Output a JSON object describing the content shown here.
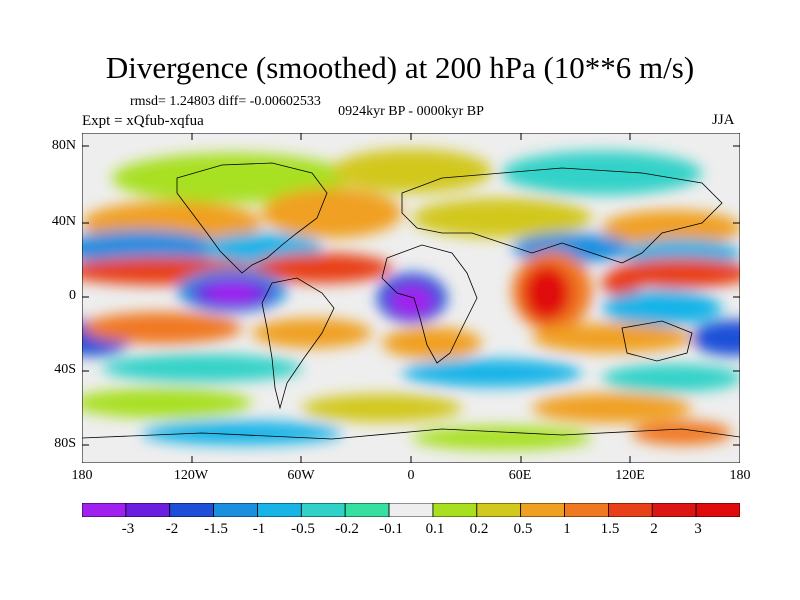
{
  "title": "Divergence (smoothed) at 200 hPa (10**6 m/s)",
  "stats": "rmsd= 1.24803 diff= -0.00602533",
  "experiment": "Expt = xQfub-xqfua",
  "period": "0924kyr BP - 0000kyr BP",
  "season": "JJA",
  "lat_labels": [
    "80N",
    "40N",
    "0",
    "40S",
    "80S"
  ],
  "lon_labels": [
    "180",
    "120W",
    "60W",
    "0",
    "60E",
    "120E",
    "180"
  ],
  "colorbar": {
    "labels": [
      "-3",
      "-2",
      "-1.5",
      "-1",
      "-0.5",
      "-0.2",
      "-0.1",
      "0.1",
      "0.2",
      "0.5",
      "1",
      "1.5",
      "2",
      "3"
    ],
    "colors": [
      "#a020f0",
      "#6a1fe0",
      "#1e4fd8",
      "#1a8fe0",
      "#18b4e8",
      "#30d2c8",
      "#36e0a0",
      "#eeeeee",
      "#a8e020",
      "#d2c81e",
      "#f0a020",
      "#f07820",
      "#e84018",
      "#dc1414",
      "#e00a0a"
    ]
  }
}
